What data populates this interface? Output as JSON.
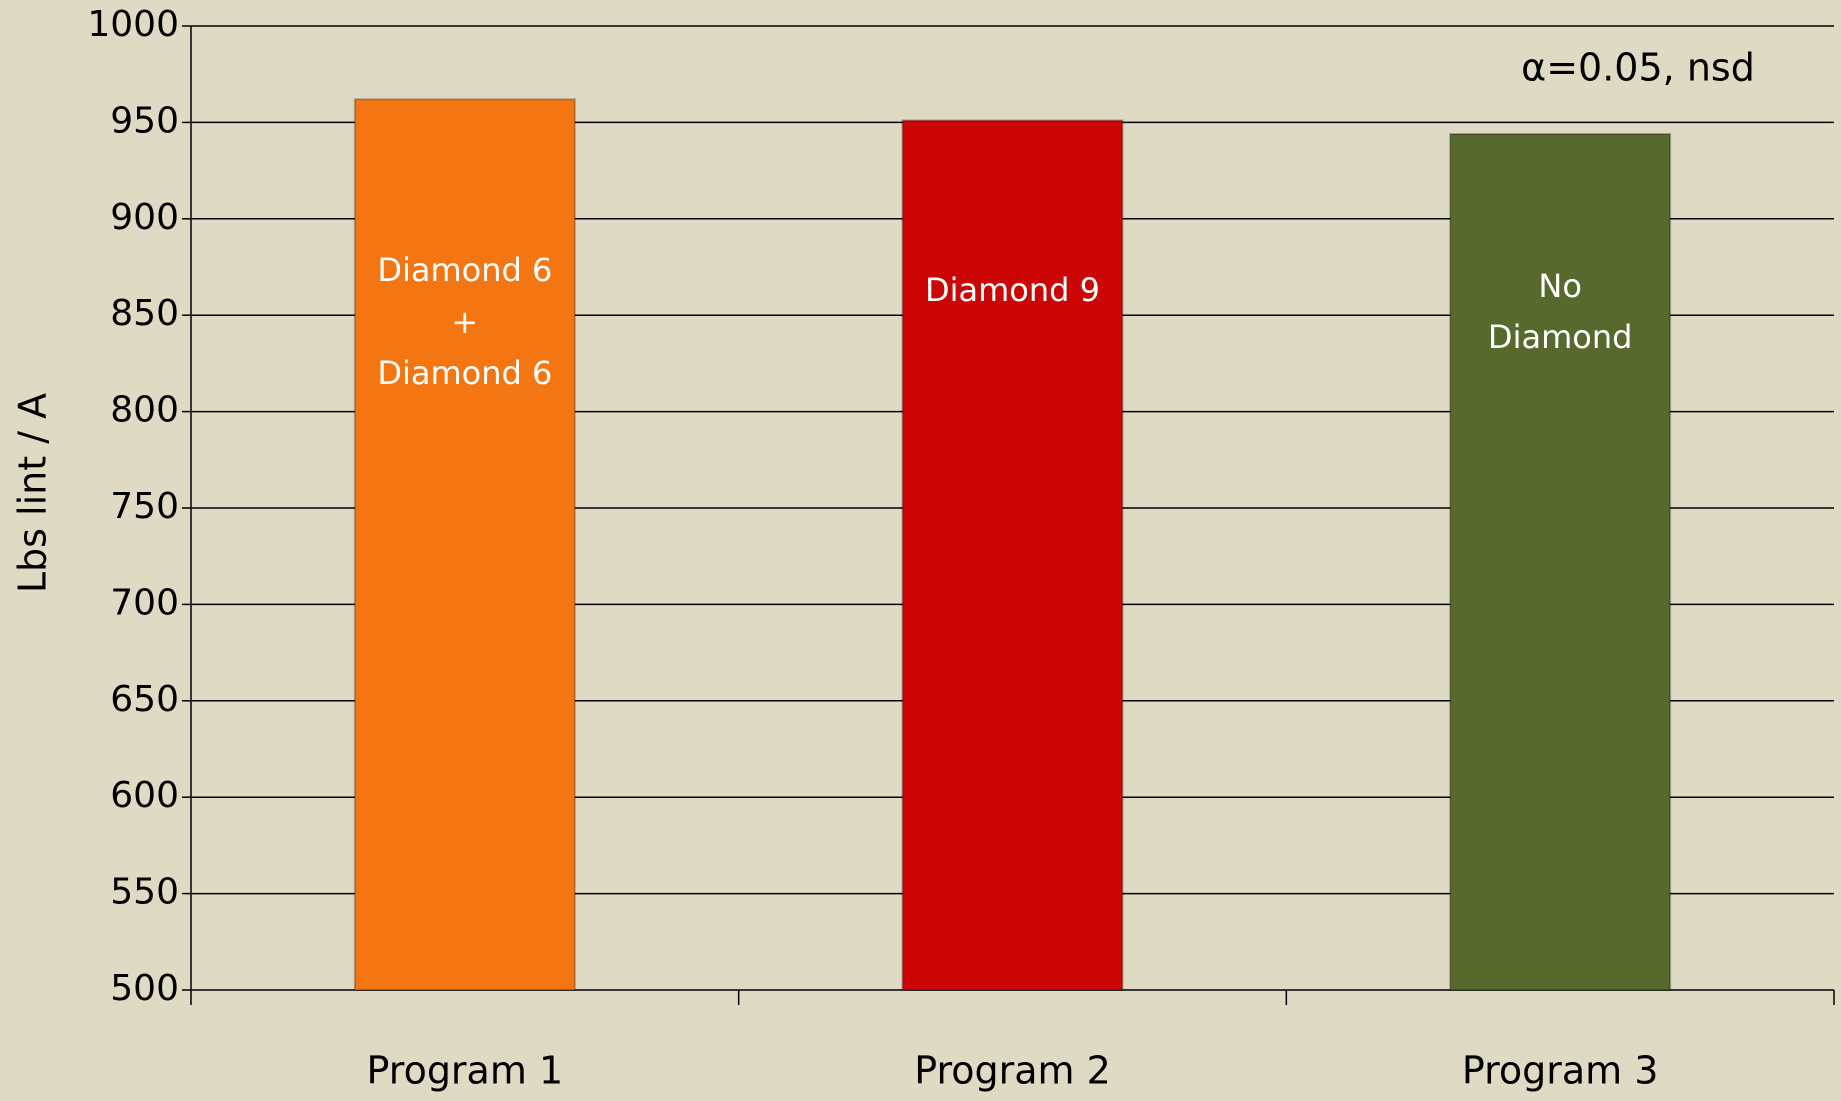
{
  "chart_data": {
    "type": "bar",
    "y_label": "Lbs lint / A",
    "annotation": "α=0.05, nsd",
    "categories": [
      "Program 1",
      "Program 2",
      "Program 3"
    ],
    "values": [
      962,
      951,
      944
    ],
    "colors": [
      "#f47612",
      "#cc0606",
      "#58692e"
    ],
    "bar_labels": [
      [
        "Diamond 6",
        "+",
        "Diamond 6"
      ],
      [
        "Diamond 9"
      ],
      [
        "No",
        "Diamond"
      ]
    ],
    "ylim": [
      500,
      1000
    ],
    "yticks": [
      500,
      550,
      600,
      650,
      700,
      750,
      800,
      850,
      900,
      950,
      1000
    ],
    "grid": true
  }
}
